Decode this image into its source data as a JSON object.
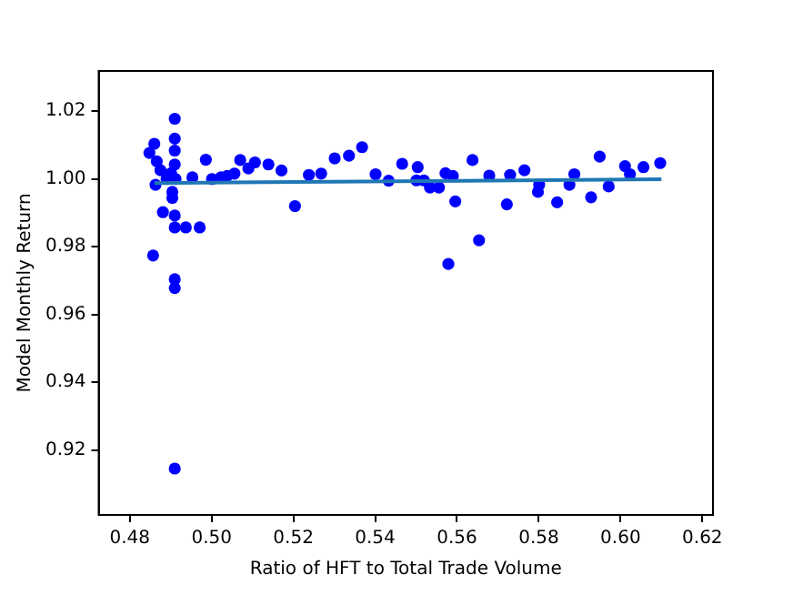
{
  "chart_data": {
    "type": "scatter",
    "xlabel": "Ratio of HFT to Total Trade Volume",
    "ylabel": "Model Monthly Return",
    "xlim": [
      0.4724,
      0.6226
    ],
    "xticks": [
      0.48,
      {
        "value": 0.5,
        "label": "0.50"
      },
      0.52,
      0.54,
      0.56,
      0.58,
      {
        "value": 0.6,
        "label": "0.60"
      },
      0.62
    ],
    "ylim": [
      0.9008,
      1.0319
    ],
    "yticks": [
      0.92,
      0.94,
      0.96,
      0.98,
      {
        "value": 1.0,
        "label": "1.00"
      },
      1.02
    ],
    "grid": false,
    "legend": false,
    "series": [
      {
        "marker": "circle",
        "color": "#0000ff",
        "x": [
          0.491,
          0.491,
          0.486,
          0.4848,
          0.491,
          0.4866,
          0.491,
          0.4875,
          0.4901,
          0.489,
          0.4912,
          0.4863,
          0.4904,
          0.4904,
          0.4881,
          0.491,
          0.491,
          0.4937,
          0.4971,
          0.4857,
          0.491,
          0.491,
          0.491,
          0.4986,
          0.4953,
          0.5001,
          0.5023,
          0.5038,
          0.5056,
          0.507,
          0.509,
          0.5106,
          0.5139,
          0.5171,
          0.5204,
          0.5238,
          0.5268,
          0.5301,
          0.5336,
          0.5368,
          0.5401,
          0.5433,
          0.5466,
          0.5504,
          0.5501,
          0.5519,
          0.5534,
          0.5556,
          0.5572,
          0.559,
          0.5579,
          0.5596,
          0.5638,
          0.5654,
          0.5679,
          0.5722,
          0.573,
          0.5765,
          0.5801,
          0.5798,
          0.5845,
          0.5875,
          0.5887,
          0.5928,
          0.5949,
          0.5971,
          0.6011,
          0.6023,
          0.6056,
          0.6097
        ],
        "values": [
          1.0178,
          1.0119,
          1.0104,
          1.0077,
          1.0084,
          1.0052,
          1.0043,
          1.0026,
          1.0017,
          1.0,
          1.0,
          0.9983,
          0.9962,
          0.9944,
          0.9902,
          0.9892,
          0.9857,
          0.9857,
          0.9857,
          0.9774,
          0.9704,
          0.9678,
          0.9145,
          1.0057,
          1.0005,
          1.0,
          1.0005,
          1.0009,
          1.0016,
          1.0056,
          1.0031,
          1.0049,
          1.0043,
          1.0025,
          0.992,
          1.0012,
          1.0016,
          1.0061,
          1.0069,
          1.0094,
          1.0014,
          0.9995,
          1.0045,
          1.0035,
          0.9996,
          0.9996,
          0.9975,
          0.9975,
          1.0017,
          1.0009,
          0.9749,
          0.9934,
          1.0056,
          0.9819,
          1.001,
          0.9925,
          1.0012,
          1.0026,
          0.9983,
          0.9962,
          0.9931,
          0.9983,
          1.0014,
          0.9946,
          1.0066,
          0.9978,
          1.0038,
          1.0014,
          1.0035,
          1.0047
        ]
      },
      {
        "type": "line",
        "color": "#1f77b4",
        "x": [
          0.486,
          0.61
        ],
        "values": [
          0.9988,
          0.9999
        ]
      }
    ]
  }
}
